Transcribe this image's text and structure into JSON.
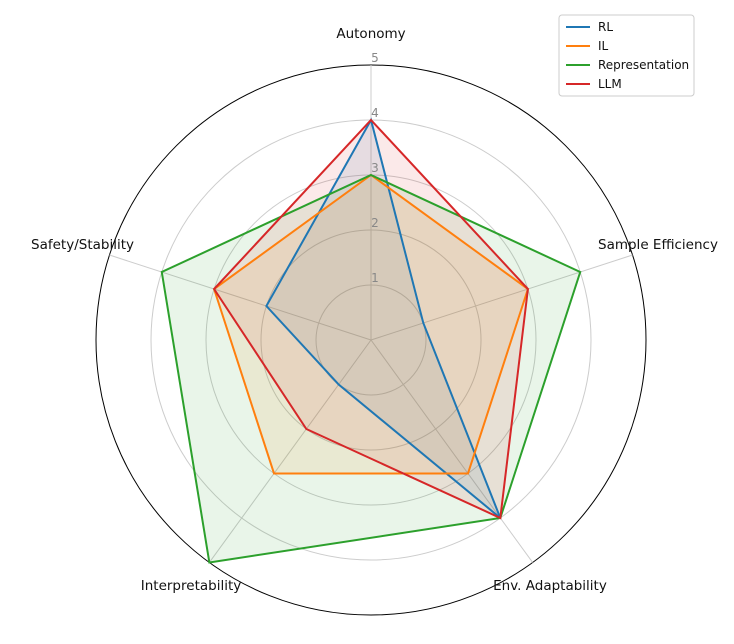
{
  "chart_data": {
    "type": "radar",
    "axes": [
      "Autonomy",
      "Sample Efficiency",
      "Env. Adaptability",
      "Interpretability",
      "Safety/Stability"
    ],
    "rlim": [
      0,
      5
    ],
    "rticks": [
      1,
      2,
      3,
      4,
      5
    ],
    "rtick_labels": [
      "1",
      "2",
      "3",
      "4",
      "5"
    ],
    "grid": true,
    "legend_position": "top-right",
    "series": [
      {
        "name": "RL",
        "values": [
          4,
          1,
          4,
          1,
          2
        ],
        "color": "#1f77b4"
      },
      {
        "name": "IL",
        "values": [
          3,
          3,
          3,
          3,
          3
        ],
        "color": "#ff7f0e"
      },
      {
        "name": "Representation",
        "values": [
          3,
          4,
          4,
          5,
          4
        ],
        "color": "#2ca02c"
      },
      {
        "name": "LLM",
        "values": [
          4,
          3,
          4,
          2,
          3
        ],
        "color": "#d62728"
      }
    ]
  }
}
